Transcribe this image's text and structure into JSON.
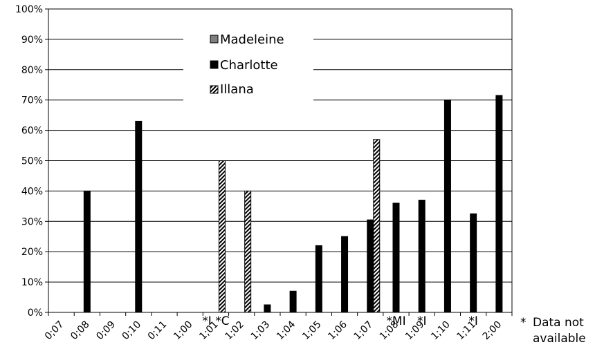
{
  "chart_data": {
    "type": "bar",
    "categories": [
      "0;07",
      "0;08",
      "0;09",
      "0;10",
      "0;11",
      "1;00",
      "1;01",
      "1;02",
      "1;03",
      "1;04",
      "1;05",
      "1;06",
      "1;07",
      "1;08",
      "1;09",
      "1;10",
      "1;11",
      "2;00"
    ],
    "series": [
      {
        "name": "Madeleine",
        "color": "#808080",
        "pattern": "solid-gray",
        "values": [
          null,
          null,
          null,
          null,
          null,
          null,
          null,
          null,
          null,
          null,
          null,
          null,
          null,
          null,
          null,
          null,
          null,
          null
        ]
      },
      {
        "name": "Charlotte",
        "color": "#000000",
        "pattern": "solid-black",
        "values": [
          null,
          40,
          null,
          63,
          null,
          null,
          null,
          null,
          2.5,
          7,
          22,
          25,
          30.5,
          36,
          37,
          70,
          32.5,
          71.5
        ]
      },
      {
        "name": "Illana",
        "color": "#000000",
        "pattern": "diagonal-hatch",
        "values": [
          null,
          null,
          null,
          null,
          null,
          null,
          50,
          40,
          null,
          null,
          null,
          null,
          57,
          null,
          null,
          null,
          null,
          null
        ]
      }
    ],
    "yticks": [
      "0%",
      "10%",
      "20%",
      "30%",
      "40%",
      "50%",
      "60%",
      "70%",
      "80%",
      "90%",
      "100%"
    ],
    "ylim": [
      0,
      100
    ],
    "y_unit": "%",
    "grid": true,
    "legend_position": "top-center",
    "annotations": [
      {
        "category": "1;01",
        "text": "*I *C"
      },
      {
        "category": "1;08",
        "text": "*MI"
      },
      {
        "category": "1;09",
        "text": "*I"
      },
      {
        "category": "1;11",
        "text": "*I"
      }
    ],
    "note": {
      "star": "*",
      "line1": "Data not",
      "line2": "available"
    }
  }
}
